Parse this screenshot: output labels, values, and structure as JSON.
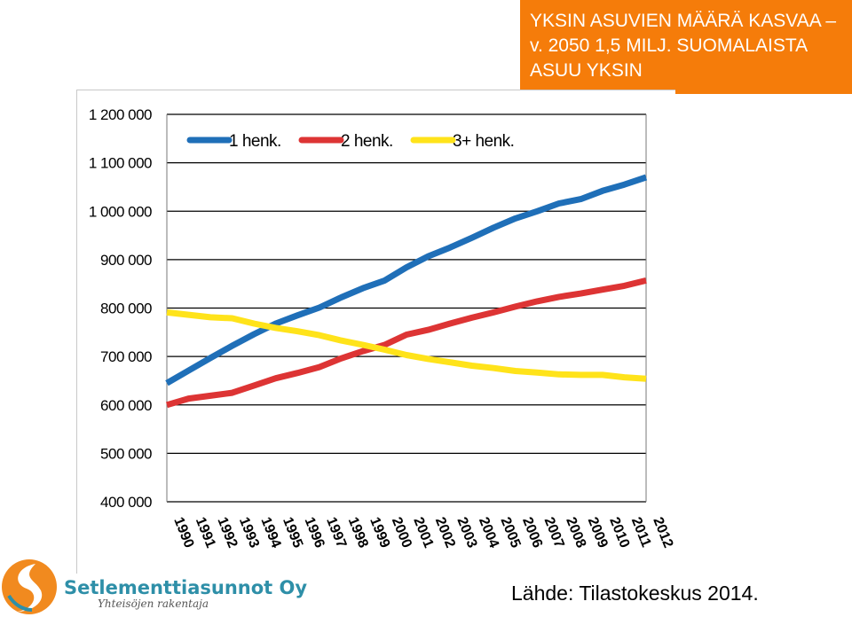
{
  "header": {
    "title_lines": [
      "YKSIN ASUVIEN MÄÄRÄ KASVAA –",
      "v. 2050 1,5 MILJ. SUOMALAISTA",
      "ASUU YKSIN"
    ]
  },
  "source": "Lähde: Tilastokeskus 2014.",
  "logo": {
    "name": "Setlementtiasunnot Oy",
    "tagline": "Yhteisöjen rakentaja"
  },
  "colors": {
    "banner": "#f57c0a",
    "series_1": "#1f6fb8",
    "series_2": "#dd3434",
    "series_3": "#ffe31a"
  },
  "chart_data": {
    "type": "line",
    "title": "",
    "xlabel": "",
    "ylabel": "",
    "ylim": [
      400000,
      1200000
    ],
    "y_ticks": [
      400000,
      500000,
      600000,
      700000,
      800000,
      900000,
      1000000,
      1100000,
      1200000
    ],
    "y_tick_labels": [
      "400 000",
      "500 000",
      "600 000",
      "700 000",
      "800 000",
      "900 000",
      "1 000 000",
      "1 100 000",
      "1 200 000"
    ],
    "grid": "horizontal",
    "legend": "top",
    "x": [
      "1990",
      "1991",
      "1992",
      "1993",
      "1994",
      "1995",
      "1996",
      "1997",
      "1998",
      "1999",
      "2000",
      "2001",
      "2002",
      "2003",
      "2004",
      "2005",
      "2006",
      "2007",
      "2008",
      "2009",
      "2010",
      "2011",
      "2012"
    ],
    "series": [
      {
        "name": "1 henk.",
        "color": "#1f6fb8",
        "values": [
          645000,
          671000,
          697000,
          722000,
          746000,
          768000,
          785000,
          801000,
          822000,
          841000,
          857000,
          884000,
          907000,
          925000,
          945000,
          966000,
          985000,
          1000000,
          1016000,
          1025000,
          1042000,
          1055000,
          1070000
        ]
      },
      {
        "name": "2 henk.",
        "color": "#dd3434",
        "values": [
          600000,
          613000,
          619000,
          625000,
          640000,
          655000,
          666000,
          678000,
          696000,
          711000,
          724000,
          745000,
          755000,
          768000,
          780000,
          791000,
          803000,
          814000,
          823000,
          830000,
          838000,
          846000,
          857000
        ]
      },
      {
        "name": "3+ henk.",
        "color": "#ffe31a",
        "values": [
          791000,
          786000,
          781000,
          779000,
          768000,
          759000,
          752000,
          744000,
          733000,
          724000,
          714000,
          703000,
          695000,
          688000,
          681000,
          676000,
          670000,
          667000,
          663000,
          662000,
          662000,
          657000,
          654000
        ]
      }
    ]
  }
}
